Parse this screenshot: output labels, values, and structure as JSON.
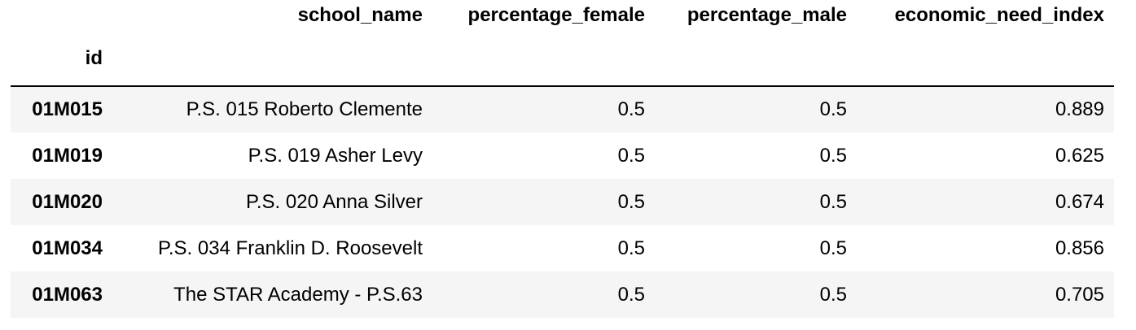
{
  "table": {
    "index_name": "id",
    "columns": [
      "school_name",
      "percentage_female",
      "percentage_male",
      "economic_need_index"
    ],
    "rows": [
      {
        "id": "01M015",
        "school_name": "P.S. 015 Roberto Clemente",
        "percentage_female": "0.5",
        "percentage_male": "0.5",
        "economic_need_index": "0.889"
      },
      {
        "id": "01M019",
        "school_name": "P.S. 019 Asher Levy",
        "percentage_female": "0.5",
        "percentage_male": "0.5",
        "economic_need_index": "0.625"
      },
      {
        "id": "01M020",
        "school_name": "P.S. 020 Anna Silver",
        "percentage_female": "0.5",
        "percentage_male": "0.5",
        "economic_need_index": "0.674"
      },
      {
        "id": "01M034",
        "school_name": "P.S. 034 Franklin D. Roosevelt",
        "percentage_female": "0.5",
        "percentage_male": "0.5",
        "economic_need_index": "0.856"
      },
      {
        "id": "01M063",
        "school_name": "The STAR Academy - P.S.63",
        "percentage_female": "0.5",
        "percentage_male": "0.5",
        "economic_need_index": "0.705"
      }
    ]
  }
}
